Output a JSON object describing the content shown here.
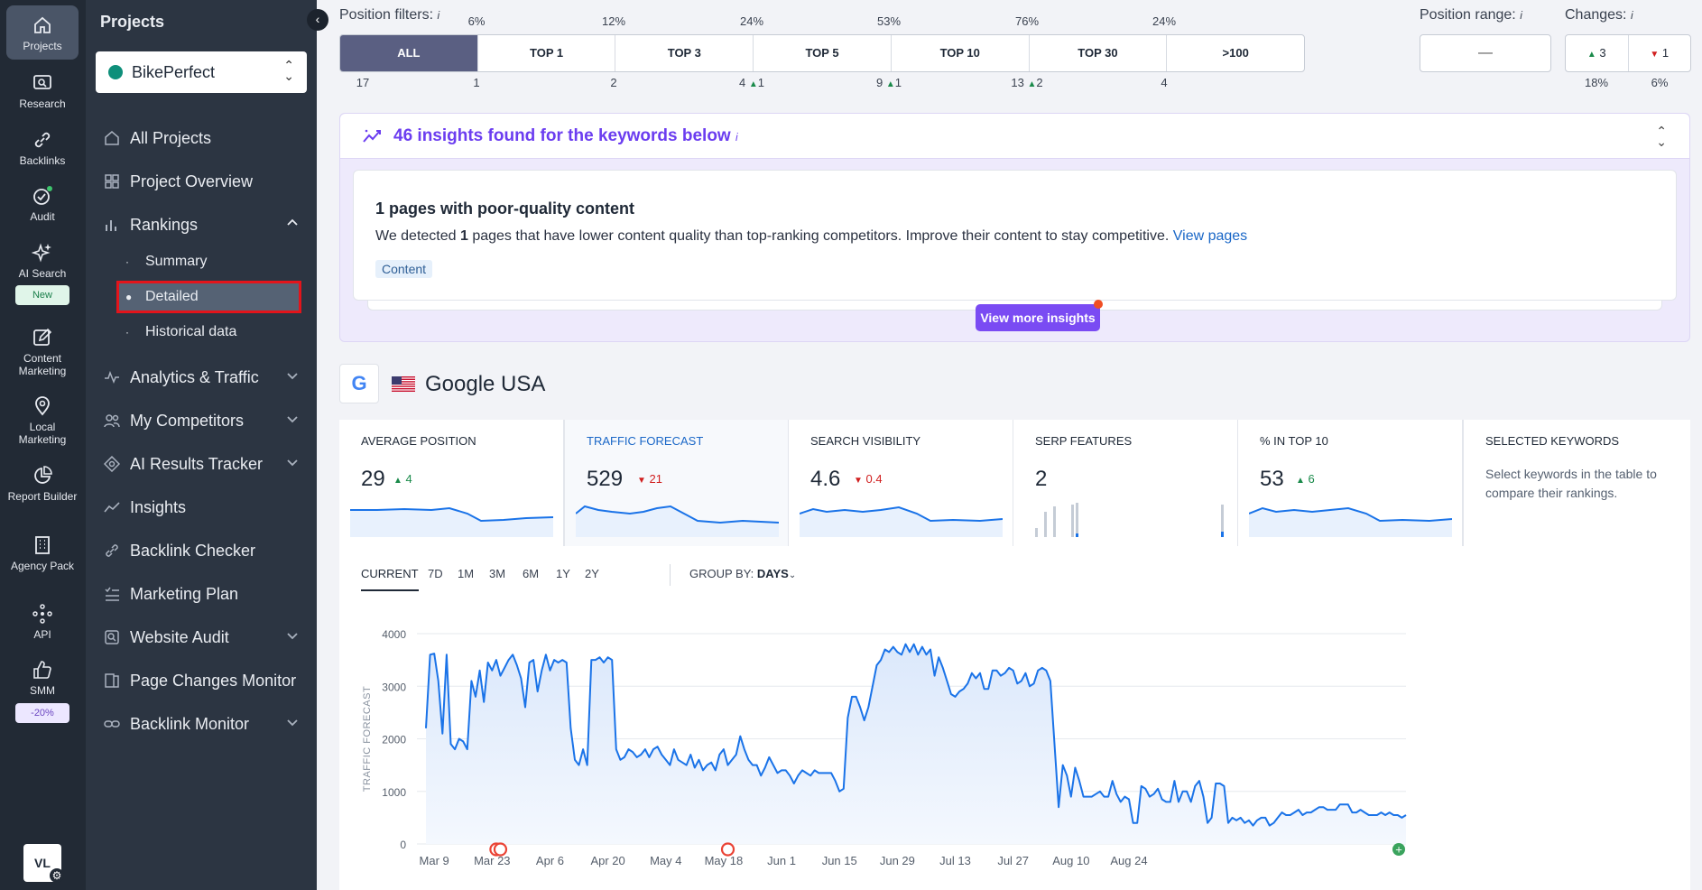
{
  "rail": {
    "items": [
      {
        "label": "Projects"
      },
      {
        "label": "Research"
      },
      {
        "label": "Backlinks"
      },
      {
        "label": "Audit"
      },
      {
        "label": "AI Search"
      },
      {
        "label": "Content Marketing"
      },
      {
        "label": "Local Marketing"
      },
      {
        "label": "Report Builder"
      },
      {
        "label": "Agency Pack"
      },
      {
        "label": "API"
      },
      {
        "label": "SMM"
      }
    ],
    "new_badge": "New",
    "promo_badge": "-20%",
    "avatar": "VL"
  },
  "sidebar": {
    "title": "Projects",
    "project": "BikePerfect",
    "nav": [
      {
        "label": "All Projects"
      },
      {
        "label": "Project Overview"
      },
      {
        "label": "Rankings"
      },
      {
        "label": "Analytics & Traffic"
      },
      {
        "label": "My Competitors"
      },
      {
        "label": "AI Results Tracker"
      },
      {
        "label": "Insights"
      },
      {
        "label": "Backlink Checker"
      },
      {
        "label": "Marketing Plan"
      },
      {
        "label": "Website Audit"
      },
      {
        "label": "Page Changes Monitor"
      },
      {
        "label": "Backlink Monitor"
      }
    ],
    "rankings_sub": [
      {
        "label": "Summary"
      },
      {
        "label": "Detailed"
      },
      {
        "label": "Historical data"
      }
    ]
  },
  "filters": {
    "label": "Position filters:",
    "info": "i",
    "segments": [
      {
        "label": "ALL",
        "pct": "",
        "count": "17",
        "change": ""
      },
      {
        "label": "TOP 1",
        "pct": "6%",
        "count": "1",
        "change": ""
      },
      {
        "label": "TOP 3",
        "pct": "12%",
        "count": "2",
        "change": ""
      },
      {
        "label": "TOP 5",
        "pct": "24%",
        "count": "4",
        "change": "1"
      },
      {
        "label": "TOP 10",
        "pct": "53%",
        "count": "9",
        "change": "1"
      },
      {
        "label": "TOP 30",
        "pct": "76%",
        "count": "13",
        "change": "2"
      },
      {
        "label": ">100",
        "pct": "24%",
        "count": "4",
        "change": ""
      }
    ],
    "range_label": "Position range:",
    "range_value": "—",
    "changes_label": "Changes:",
    "changes_up": "3",
    "changes_down": "1",
    "changes_up_pct": "18%",
    "changes_down_pct": "6%"
  },
  "insights": {
    "title": "46 insights found for the keywords below",
    "card_title": "1 pages with poor-quality content",
    "card_text_pre": "We detected ",
    "card_text_bold": "1",
    "card_text_post": " pages that have lower content quality than top-ranking competitors. Improve their content to stay competitive. ",
    "card_link": "View pages",
    "card_tag": "Content",
    "more_button": "View more insights"
  },
  "engine": {
    "name": "Google USA",
    "logo": "G"
  },
  "metrics": [
    {
      "title": "AVERAGE POSITION",
      "value": "29",
      "delta": "4",
      "dir": "up"
    },
    {
      "title": "TRAFFIC FORECAST",
      "value": "529",
      "delta": "21",
      "dir": "down"
    },
    {
      "title": "SEARCH VISIBILITY",
      "value": "4.6",
      "delta": "0.4",
      "dir": "down"
    },
    {
      "title": "SERP FEATURES",
      "value": "2",
      "delta": "",
      "dir": ""
    },
    {
      "title": "% IN TOP 10",
      "value": "53",
      "delta": "6",
      "dir": "up"
    },
    {
      "title": "SELECTED KEYWORDS",
      "desc": "Select keywords in the table to compare their rankings."
    }
  ],
  "chart_tabs": [
    "CURRENT",
    "7D",
    "1M",
    "3M",
    "6M",
    "1Y",
    "2Y"
  ],
  "group_by": {
    "label": "GROUP BY:",
    "value": "DAYS"
  },
  "colors": {
    "accent": "#7a4bf3",
    "line": "#1a73e8",
    "up": "#1a8a4a",
    "down": "#d01e1e",
    "highlight": "#e3141b"
  },
  "chart_data": {
    "type": "area",
    "ylabel": "TRAFFIC FORECAST",
    "ylim": [
      0,
      4000
    ],
    "yticks": [
      0,
      1000,
      2000,
      3000,
      4000
    ],
    "xticks": [
      "Mar 9",
      "Mar 23",
      "Apr 6",
      "Apr 20",
      "May 4",
      "May 18",
      "Jun 1",
      "Jun 15",
      "Jun 29",
      "Jul 13",
      "Jul 27",
      "Aug 10",
      "Aug 24"
    ],
    "x_start_label": "Mar 9",
    "x_start_offset_days": -2,
    "google_update_markers": [
      "Mar 24",
      "Mar 25",
      "May 19"
    ],
    "values": [
      2200,
      3600,
      3620,
      3100,
      2100,
      3600,
      1900,
      1800,
      2000,
      1950,
      1800,
      3100,
      2800,
      3300,
      2700,
      3450,
      3300,
      3500,
      3200,
      3350,
      3500,
      3600,
      3400,
      3150,
      2600,
      3450,
      3500,
      2900,
      3300,
      3600,
      3300,
      3500,
      3450,
      3500,
      3450,
      2200,
      1600,
      1500,
      1800,
      1500,
      3500,
      3500,
      3550,
      3450,
      3550,
      3500,
      1800,
      1600,
      1650,
      1800,
      1750,
      1650,
      1700,
      1800,
      1650,
      1800,
      1850,
      1700,
      1600,
      1500,
      1800,
      1600,
      1550,
      1500,
      1700,
      1450,
      1600,
      1400,
      1500,
      1550,
      1400,
      1700,
      1800,
      1500,
      1600,
      1700,
      2050,
      1800,
      1600,
      1500,
      1500,
      1300,
      1450,
      1650,
      1500,
      1350,
      1400,
      1400,
      1300,
      1150,
      1300,
      1400,
      1350,
      1300,
      1400,
      1350,
      1350,
      1350,
      1350,
      1200,
      1000,
      1050,
      2400,
      2800,
      2800,
      2600,
      2350,
      2600,
      3000,
      3400,
      3500,
      3700,
      3650,
      3750,
      3650,
      3600,
      3800,
      3650,
      3800,
      3600,
      3750,
      3600,
      3700,
      3200,
      3550,
      3350,
      3100,
      2850,
      2800,
      2900,
      2950,
      3050,
      3250,
      3150,
      3250,
      2950,
      2950,
      3300,
      3300,
      3200,
      3250,
      3350,
      3300,
      3050,
      3100,
      3250,
      3000,
      3050,
      3300,
      3350,
      3300,
      3100,
      1900,
      700,
      1500,
      1300,
      900,
      1450,
      1200,
      900,
      900,
      900,
      950,
      1000,
      900,
      900,
      1200,
      950,
      800,
      900,
      850,
      400,
      400,
      1100,
      1050,
      900,
      950,
      1050,
      850,
      800,
      800,
      1200,
      800,
      1000,
      1000,
      800,
      1100,
      1200,
      900,
      400,
      500,
      1150,
      1150,
      1100,
      400,
      500,
      450,
      500,
      400,
      450,
      350,
      450,
      500,
      500,
      350,
      400,
      500,
      600,
      550,
      550,
      600,
      650,
      550,
      600,
      600,
      650,
      700,
      700,
      650,
      650,
      650,
      750,
      750,
      750,
      600,
      600,
      650,
      600,
      550,
      550,
      550,
      600,
      550,
      600,
      550,
      550,
      500,
      550
    ]
  }
}
